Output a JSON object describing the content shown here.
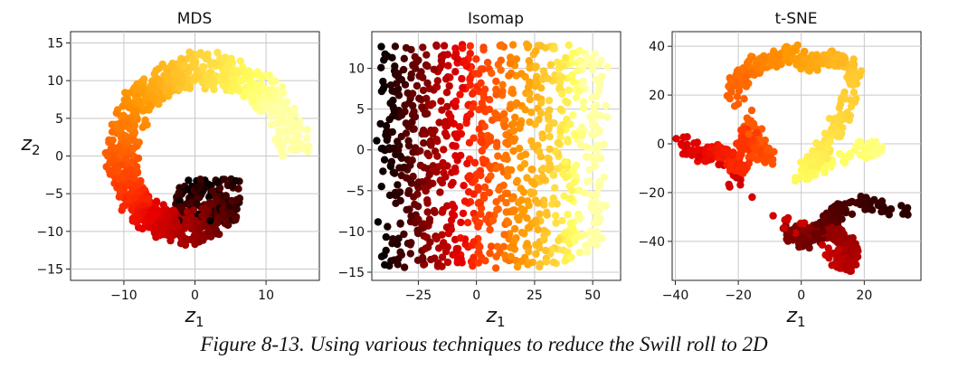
{
  "caption": "Figure 8-13. Using various techniques to reduce the Swill roll to 2D",
  "colormap": {
    "name": "hot",
    "stops": [
      "#000000",
      "#e60000",
      "#ff2e00",
      "#ff9500",
      "#ffff60",
      "#ffffff"
    ]
  },
  "chart_data": [
    {
      "type": "scatter",
      "title": "MDS",
      "xlabel": "z1",
      "ylabel": "z2",
      "xlim": [
        -17.5,
        17.5
      ],
      "ylim": [
        -16.5,
        16.5
      ],
      "xticks": [
        -10,
        0,
        10
      ],
      "yticks": [
        -15,
        -10,
        -5,
        0,
        5,
        10,
        15
      ],
      "xtick_labels": [
        "−10",
        "0",
        "10"
      ],
      "ytick_labels": [
        "−15",
        "−10",
        "−5",
        "0",
        "5",
        "10",
        "15"
      ],
      "grid": true,
      "shape": "annulus",
      "annulus_center": [
        0,
        -1
      ],
      "inner_radius": 6.5,
      "outer_radius": 15.5
    },
    {
      "type": "scatter",
      "title": "Isomap",
      "xlabel": "z1",
      "ylabel": "",
      "xlim": [
        -45,
        62
      ],
      "ylim": [
        -16,
        14.5
      ],
      "xticks": [
        -25,
        0,
        25,
        50
      ],
      "yticks": [
        -15,
        -10,
        -5,
        0,
        5,
        10
      ],
      "xtick_labels": [
        "−25",
        "0",
        "25",
        "50"
      ],
      "ytick_labels": [
        "−15",
        "−10",
        "−5",
        "0",
        "5",
        "10"
      ],
      "grid": true,
      "shape": "sheet",
      "x_range": [
        -41,
        55
      ],
      "y_range": [
        -14.5,
        13
      ]
    },
    {
      "type": "scatter",
      "title": "t-SNE",
      "xlabel": "z1",
      "ylabel": "",
      "xlim": [
        -41,
        38
      ],
      "ylim": [
        -56,
        46
      ],
      "xticks": [
        -40,
        -20,
        0,
        20
      ],
      "yticks": [
        -40,
        -20,
        0,
        20,
        40
      ],
      "xtick_labels": [
        "−40",
        "−20",
        "0",
        "20"
      ],
      "ytick_labels": [
        "−40",
        "−20",
        "0",
        "20",
        "40"
      ],
      "grid": true,
      "shape": "path",
      "path": [
        [
          33,
          -28
        ],
        [
          22,
          -24
        ],
        [
          12,
          -27
        ],
        [
          8,
          -32
        ],
        [
          2,
          -40
        ],
        [
          -5,
          -36
        ],
        [
          10,
          -36
        ],
        [
          16,
          -42
        ],
        [
          15,
          -50
        ],
        [
          10,
          -46
        ],
        [
          -38,
          1
        ],
        [
          -32,
          -5
        ],
        [
          -26,
          -3
        ],
        [
          -20,
          -10
        ],
        [
          -17,
          5
        ],
        [
          -14,
          -4
        ],
        [
          -10,
          -6
        ],
        [
          -22,
          24
        ],
        [
          -18,
          28
        ],
        [
          -14,
          33
        ],
        [
          -8,
          34
        ],
        [
          -3,
          38
        ],
        [
          2,
          32
        ],
        [
          8,
          35
        ],
        [
          14,
          34
        ],
        [
          17,
          28
        ],
        [
          13,
          12
        ],
        [
          10,
          4
        ],
        [
          6,
          -4
        ],
        [
          0,
          -14
        ],
        [
          20,
          -2
        ],
        [
          25,
          -2
        ]
      ]
    }
  ]
}
